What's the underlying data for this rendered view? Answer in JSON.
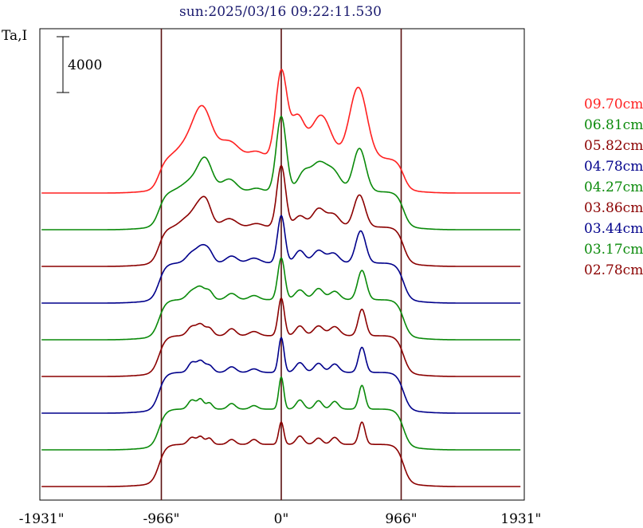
{
  "chart_data": {
    "type": "line",
    "title": "sun:2025/03/16 09:22:11.530",
    "ylabel": "Ta,I",
    "scale_bar_label": "4000",
    "scale_bar_value": 4000,
    "x_unit": "arcsec",
    "xlim": [
      -1931,
      1931
    ],
    "xticks": [
      {
        "value": -1931,
        "label": "-1931\""
      },
      {
        "value": -966,
        "label": "-966\""
      },
      {
        "value": 0,
        "label": "0\""
      },
      {
        "value": 966,
        "label": "966\""
      },
      {
        "value": 1931,
        "label": "1931\""
      }
    ],
    "vlines": [
      -966,
      0,
      966
    ],
    "offset_step": 4000,
    "legend_position": "right",
    "colors": {
      "red": "#ff2020",
      "green": "#0a8a0a",
      "darkred": "#8b0000",
      "blue": "#00008b",
      "axis": "#000000",
      "marker": "#5a1010"
    },
    "series": [
      {
        "name": "09.70cm",
        "color": "#ff2020",
        "baseline": 1250,
        "disk": 2350,
        "peaks": [
          [
            -700,
            1500,
            110
          ],
          [
            -630,
            2500,
            70
          ],
          [
            -420,
            1200,
            80
          ],
          [
            -200,
            500,
            60
          ],
          [
            0,
            6200,
            45
          ],
          [
            130,
            2900,
            55
          ],
          [
            320,
            3100,
            80
          ],
          [
            620,
            5100,
            70
          ]
        ]
      },
      {
        "name": "06.81cm",
        "color": "#0a8a0a",
        "baseline": 1250,
        "disk": 2600,
        "peaks": [
          [
            -700,
            900,
            90
          ],
          [
            -610,
            1900,
            55
          ],
          [
            -420,
            900,
            60
          ],
          [
            -200,
            250,
            50
          ],
          [
            0,
            5400,
            40
          ],
          [
            180,
            1300,
            50
          ],
          [
            300,
            1900,
            60
          ],
          [
            420,
            1400,
            60
          ],
          [
            630,
            3100,
            50
          ]
        ]
      },
      {
        "name": "05.82cm",
        "color": "#8b0000",
        "baseline": 1250,
        "disk": 2700,
        "peaks": [
          [
            -750,
            700,
            60
          ],
          [
            -680,
            800,
            40
          ],
          [
            -610,
            1900,
            45
          ],
          [
            -420,
            600,
            60
          ],
          [
            -200,
            250,
            50
          ],
          [
            0,
            4400,
            35
          ],
          [
            150,
            800,
            45
          ],
          [
            300,
            1300,
            50
          ],
          [
            420,
            900,
            50
          ],
          [
            630,
            2300,
            45
          ]
        ]
      },
      {
        "name": "04.78cm",
        "color": "#00008b",
        "baseline": 1250,
        "disk": 2750,
        "peaks": [
          [
            -720,
            700,
            45
          ],
          [
            -640,
            1000,
            40
          ],
          [
            -580,
            700,
            35
          ],
          [
            -400,
            500,
            45
          ],
          [
            -220,
            350,
            50
          ],
          [
            0,
            3400,
            30
          ],
          [
            150,
            900,
            40
          ],
          [
            300,
            900,
            45
          ],
          [
            420,
            700,
            45
          ],
          [
            640,
            2300,
            40
          ]
        ]
      },
      {
        "name": "04.27cm",
        "color": "#0a8a0a",
        "baseline": 1250,
        "disk": 2750,
        "peaks": [
          [
            -720,
            600,
            40
          ],
          [
            -650,
            800,
            35
          ],
          [
            -580,
            600,
            30
          ],
          [
            -400,
            450,
            40
          ],
          [
            -220,
            300,
            40
          ],
          [
            0,
            3000,
            28
          ],
          [
            150,
            700,
            40
          ],
          [
            300,
            800,
            40
          ],
          [
            430,
            600,
            40
          ],
          [
            650,
            2100,
            35
          ]
        ]
      },
      {
        "name": "03.86cm",
        "color": "#8b0000",
        "baseline": 1250,
        "disk": 2800,
        "peaks": [
          [
            -720,
            650,
            35
          ],
          [
            -650,
            750,
            30
          ],
          [
            -580,
            550,
            30
          ],
          [
            -400,
            500,
            35
          ],
          [
            -220,
            300,
            40
          ],
          [
            0,
            2700,
            25
          ],
          [
            150,
            700,
            35
          ],
          [
            300,
            700,
            40
          ],
          [
            430,
            650,
            40
          ],
          [
            650,
            1900,
            30
          ]
        ]
      },
      {
        "name": "03.44cm",
        "color": "#00008b",
        "baseline": 1250,
        "disk": 2800,
        "peaks": [
          [
            -720,
            700,
            30
          ],
          [
            -650,
            800,
            30
          ],
          [
            -580,
            500,
            30
          ],
          [
            -400,
            400,
            35
          ],
          [
            -220,
            250,
            35
          ],
          [
            0,
            2500,
            22
          ],
          [
            150,
            700,
            35
          ],
          [
            300,
            650,
            35
          ],
          [
            430,
            600,
            35
          ],
          [
            650,
            1800,
            28
          ]
        ]
      },
      {
        "name": "03.17cm",
        "color": "#0a8a0a",
        "baseline": 1250,
        "disk": 2800,
        "peaks": [
          [
            -720,
            650,
            30
          ],
          [
            -650,
            700,
            25
          ],
          [
            -580,
            450,
            25
          ],
          [
            -400,
            400,
            30
          ],
          [
            -220,
            250,
            30
          ],
          [
            0,
            2300,
            20
          ],
          [
            150,
            650,
            30
          ],
          [
            300,
            600,
            30
          ],
          [
            430,
            550,
            30
          ],
          [
            650,
            1700,
            25
          ]
        ]
      },
      {
        "name": "02.78cm",
        "color": "#8b0000",
        "baseline": 1250,
        "disk": 2900,
        "peaks": [
          [
            -720,
            500,
            30
          ],
          [
            -650,
            550,
            25
          ],
          [
            -580,
            450,
            25
          ],
          [
            -400,
            350,
            30
          ],
          [
            -220,
            350,
            30
          ],
          [
            0,
            1600,
            20
          ],
          [
            150,
            600,
            30
          ],
          [
            300,
            450,
            30
          ],
          [
            430,
            500,
            30
          ],
          [
            650,
            1600,
            25
          ]
        ]
      }
    ]
  }
}
